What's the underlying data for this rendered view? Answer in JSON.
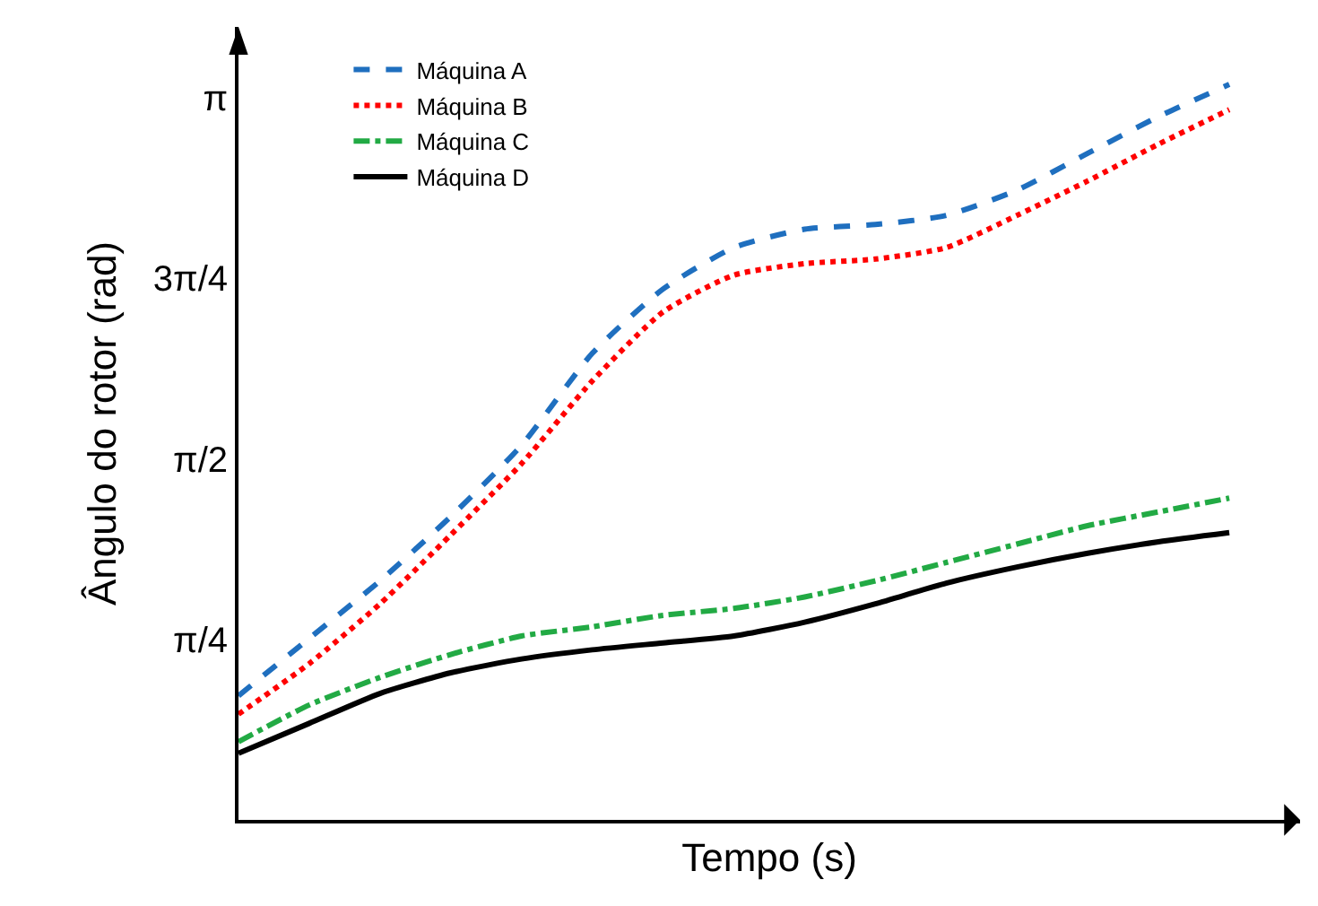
{
  "chart_data": {
    "type": "line",
    "xlabel": "Tempo (s)",
    "ylabel": "Ângulo do rotor (rad)",
    "categories": [
      null,
      null,
      null,
      null,
      null,
      null,
      null,
      null,
      null,
      null,
      null,
      null,
      null,
      null,
      null
    ],
    "ylim": [
      0,
      3.45
    ],
    "yticks": [
      {
        "value": 0.7854,
        "label": "π/4"
      },
      {
        "value": 1.5708,
        "label": "π/2"
      },
      {
        "value": 2.3562,
        "label": "3π/4"
      },
      {
        "value": 3.1416,
        "label": "π"
      }
    ],
    "grid": false,
    "legend": "top left",
    "marker": "none",
    "series": [
      {
        "name": "Máquina A",
        "color": "#1f6fbf",
        "line_style": "dashed",
        "values": [
          0.54,
          0.79,
          1.04,
          1.32,
          1.63,
          2.03,
          2.31,
          2.49,
          2.57,
          2.59,
          2.63,
          2.74,
          2.9,
          3.06,
          3.2
        ]
      },
      {
        "name": "Máquina B",
        "color": "#ff0000",
        "line_style": "dotted",
        "values": [
          0.46,
          0.68,
          0.94,
          1.24,
          1.55,
          1.91,
          2.21,
          2.37,
          2.42,
          2.44,
          2.49,
          2.63,
          2.78,
          2.94,
          3.09
        ]
      },
      {
        "name": "Máquina C",
        "color": "#22aa44",
        "line_style": "dashdot",
        "values": [
          0.34,
          0.5,
          0.62,
          0.72,
          0.8,
          0.84,
          0.89,
          0.92,
          0.97,
          1.04,
          1.12,
          1.2,
          1.28,
          1.34,
          1.4
        ]
      },
      {
        "name": "Máquina D",
        "color": "#000000",
        "line_style": "solid",
        "values": [
          0.29,
          0.42,
          0.55,
          0.64,
          0.7,
          0.74,
          0.77,
          0.8,
          0.86,
          0.94,
          1.03,
          1.1,
          1.16,
          1.21,
          1.25
        ]
      }
    ]
  }
}
